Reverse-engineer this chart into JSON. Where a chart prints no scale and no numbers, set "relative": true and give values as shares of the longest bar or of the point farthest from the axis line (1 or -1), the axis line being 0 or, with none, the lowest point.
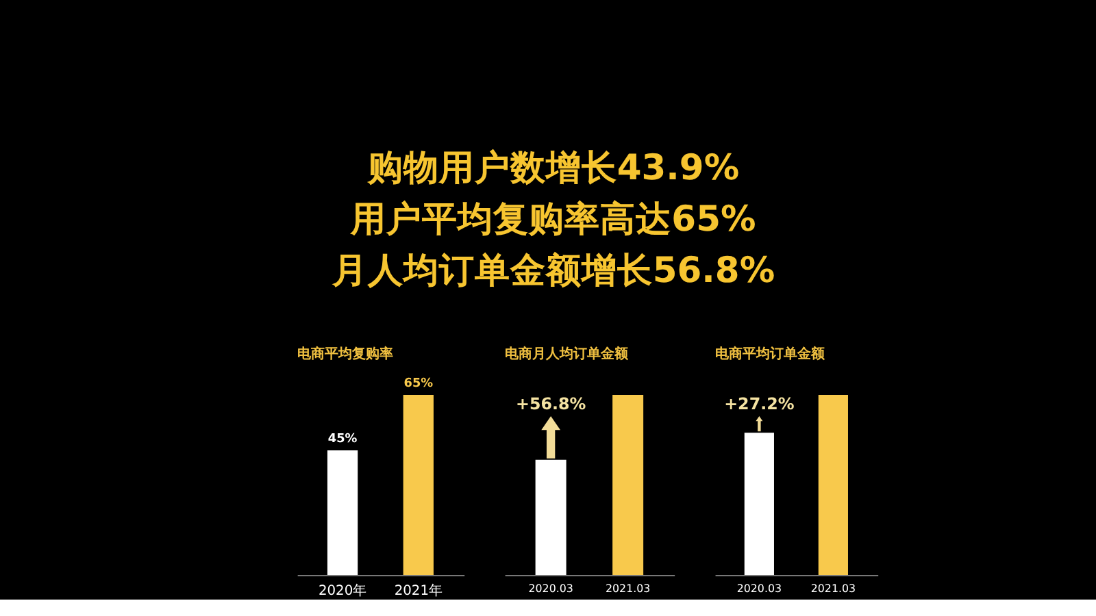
{
  "chart_data": [
    {
      "type": "other",
      "annotations": [
        "购物用户数增长43.9%",
        "用户平均复购率高达65%",
        "月人均订单金额增长56.8%"
      ]
    },
    {
      "type": "bar",
      "title": "电商平均复购率",
      "categories": [
        "2020年",
        "2021年"
      ],
      "values": [
        45,
        65
      ],
      "colors": [
        "#ffffff",
        "#f8c94c"
      ],
      "value_labels": [
        "45%",
        "65%"
      ]
    },
    {
      "type": "bar",
      "title": "电商月人均订单金额",
      "categories": [
        "2020.03",
        "2021.03"
      ],
      "values": [
        0.64,
        1
      ],
      "colors": [
        "#ffffff",
        "#f8c94c"
      ],
      "relative": true,
      "annotations": [
        "+56.8%"
      ]
    },
    {
      "type": "bar",
      "title": "电商平均订单金额",
      "categories": [
        "2020.03",
        "2021.03"
      ],
      "values": [
        0.79,
        1
      ],
      "colors": [
        "#ffffff",
        "#f8c94c"
      ],
      "relative": true,
      "annotations": [
        "+27.2%"
      ]
    }
  ]
}
